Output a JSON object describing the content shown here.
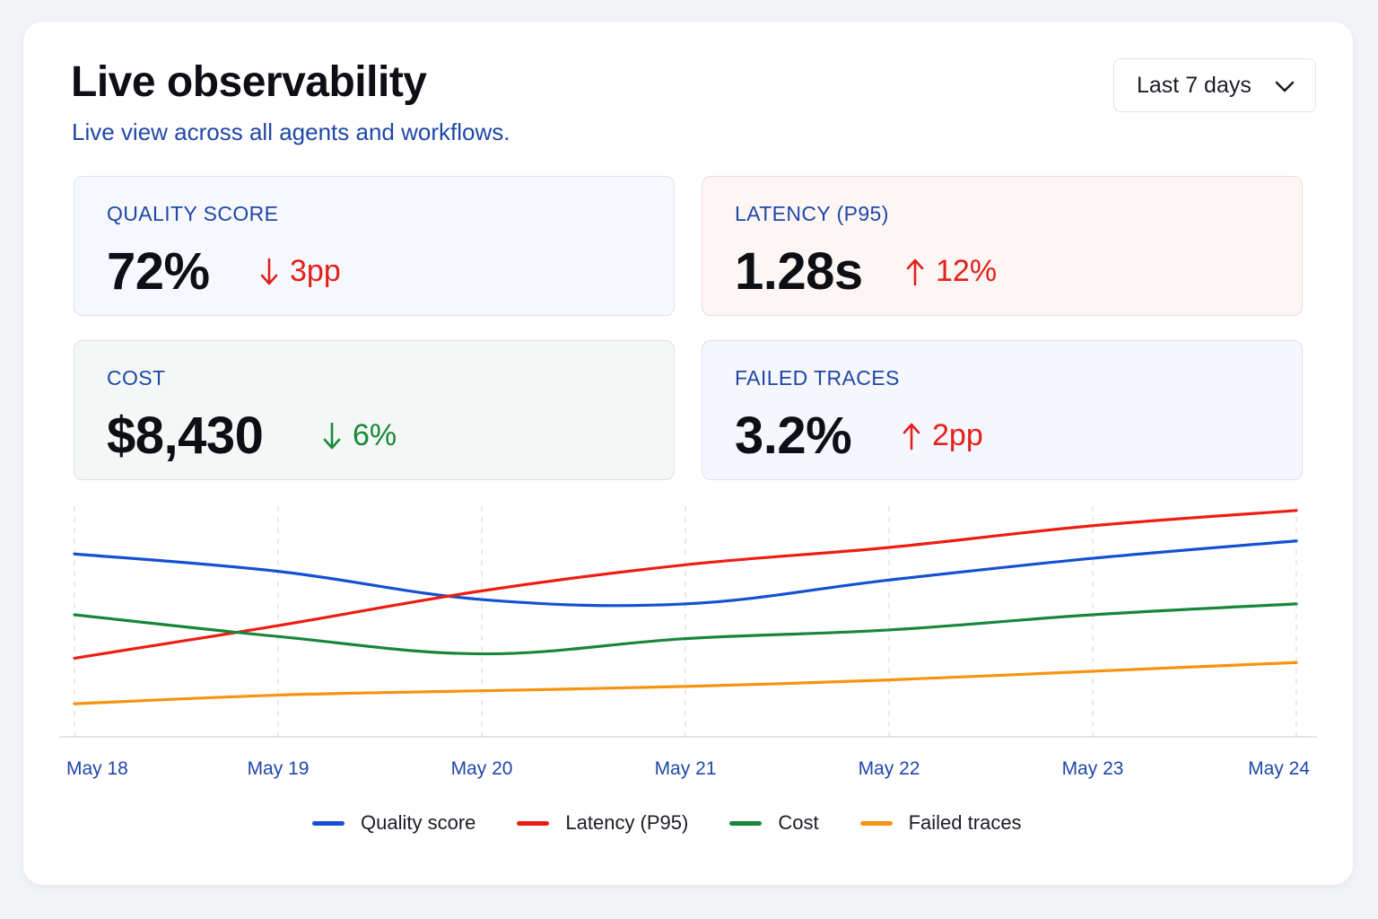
{
  "header": {
    "title": "Live observability",
    "subtitle": "Live view across all agents and workflows."
  },
  "range_select": {
    "value": "Last 7 days"
  },
  "metrics": [
    {
      "label": "QUALITY SCORE",
      "value": "72%",
      "delta": "3pp",
      "direction": "down",
      "color": "#e3201b",
      "bg": "#f6f8fe"
    },
    {
      "label": "LATENCY (P95)",
      "value": "1.28s",
      "delta": "12%",
      "direction": "up",
      "color": "#e3201b",
      "bg": "#fdf6f5"
    },
    {
      "label": "COST",
      "value": "$8,430",
      "delta": "6%",
      "direction": "down",
      "color": "#17893a",
      "bg": "#f5f7f6"
    },
    {
      "label": "FAILED TRACES",
      "value": "3.2%",
      "delta": "2pp",
      "direction": "up",
      "color": "#e3201b",
      "bg": "#f6f6fd"
    }
  ],
  "chart_data": {
    "type": "line",
    "x": [
      "May 18",
      "May 19",
      "May 20",
      "May 21",
      "May 22",
      "May 23",
      "May 24"
    ],
    "grid": "vertical dashed",
    "legend_position": "bottom-center",
    "ylim": [
      0,
      100
    ],
    "series": [
      {
        "name": "Quality score",
        "color": "#1450d2",
        "values": [
          78,
          70,
          57,
          55,
          66,
          76,
          84
        ]
      },
      {
        "name": "Latency (P95)",
        "color": "#ee1d12",
        "values": [
          30,
          45,
          61,
          73,
          81,
          91,
          98
        ]
      },
      {
        "name": "Cost",
        "color": "#17863a",
        "values": [
          50,
          40,
          32,
          39,
          43,
          50,
          55
        ]
      },
      {
        "name": "Failed traces",
        "color": "#f7930f",
        "values": [
          9,
          13,
          15,
          17,
          20,
          24,
          28
        ]
      }
    ]
  }
}
